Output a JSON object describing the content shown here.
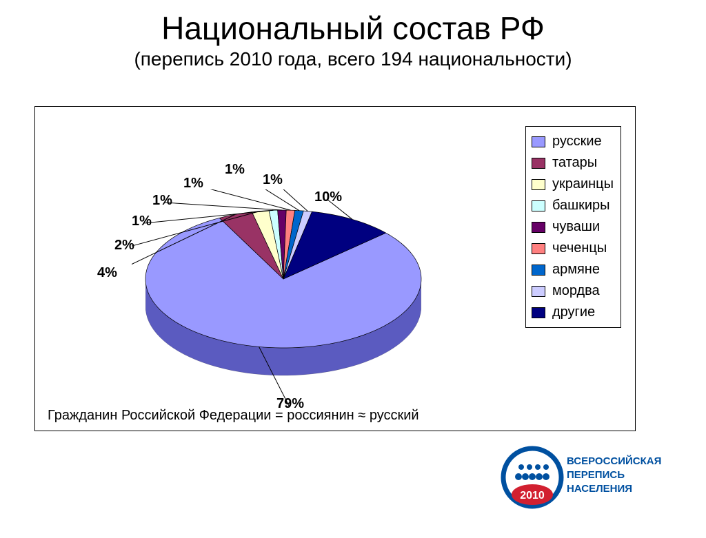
{
  "title": "Национальный состав РФ",
  "subtitle": "(перепись 2010 года, всего 194 национальности)",
  "caption": "Гражданин Российской Федерации = россиянин ≈ русский",
  "pie": {
    "type": "pie",
    "background_color": "#ffffff",
    "border_color": "#000000",
    "start_angle_deg": -42,
    "slices": [
      {
        "label": "русские",
        "value": 79,
        "color": "#9999ff",
        "side_color": "#5b5bc0",
        "display_percent": "79%"
      },
      {
        "label": "татары",
        "value": 4,
        "color": "#993365",
        "side_color": "#6f2548",
        "display_percent": "4%"
      },
      {
        "label": "украинцы",
        "value": 2,
        "color": "#ffffcc",
        "side_color": "#c7c79d",
        "display_percent": "2%"
      },
      {
        "label": "башкиры",
        "value": 1,
        "color": "#ccffff",
        "side_color": "#9cd6d6",
        "display_percent": "1%"
      },
      {
        "label": "чуваши",
        "value": 1,
        "color": "#660066",
        "side_color": "#420042",
        "display_percent": "1%"
      },
      {
        "label": "чеченцы",
        "value": 1,
        "color": "#ff8080",
        "side_color": "#c65e5e",
        "display_percent": "1%"
      },
      {
        "label": "армяне",
        "value": 1,
        "color": "#0066cc",
        "side_color": "#00478f",
        "display_percent": "1%"
      },
      {
        "label": "мордва",
        "value": 1,
        "color": "#ccccff",
        "side_color": "#9d9dd6",
        "display_percent": "1%"
      },
      {
        "label": "другие",
        "value": 10,
        "color": "#000080",
        "side_color": "#000050",
        "display_percent": "10%"
      }
    ],
    "label_fontsize": 20,
    "label_fontweight": "bold",
    "legend_fontsize": 20,
    "tilt_scale_y": 0.5,
    "depth": 40,
    "radius": 200
  },
  "logo": {
    "year": "2010",
    "line1": "ВСЕРОССИЙСКАЯ",
    "line2": "ПЕРЕПИСЬ",
    "line3": "НАСЕЛЕНИЯ",
    "ring_color": "#0050a0",
    "badge_color": "#d22030",
    "text_color": "#0050a0"
  }
}
